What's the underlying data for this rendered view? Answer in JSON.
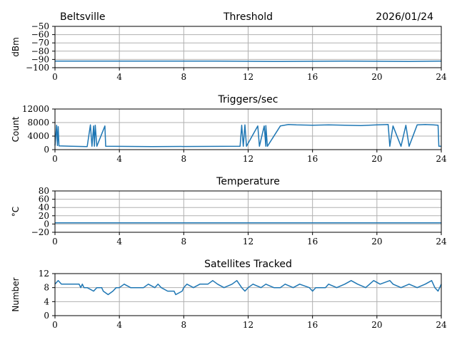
{
  "header": {
    "station": "Beltsville",
    "date": "2026/01/24"
  },
  "colors": {
    "series": "#1f77b4",
    "grid": "#b0b0b0"
  },
  "chart_data": [
    {
      "type": "line",
      "title": "Threshold",
      "xlabel": "",
      "ylabel": "dBm",
      "xlim": [
        0,
        24
      ],
      "ylim": [
        -100,
        -50
      ],
      "x_ticks": [
        0,
        4,
        8,
        12,
        16,
        20,
        24
      ],
      "y_ticks": [
        -100,
        -90,
        -80,
        -70,
        -60,
        -50
      ],
      "series": [
        {
          "name": "Threshold",
          "points": [
            [
              0,
              -92
            ],
            [
              3,
              -92
            ],
            [
              6,
              -92
            ],
            [
              10,
              -92
            ],
            [
              14,
              -92.5
            ],
            [
              18,
              -92
            ],
            [
              22,
              -92.5
            ],
            [
              24,
              -92
            ]
          ]
        }
      ]
    },
    {
      "type": "line",
      "title": "Triggers/sec",
      "xlabel": "",
      "ylabel": "Count",
      "xlim": [
        0,
        24
      ],
      "ylim": [
        0,
        12000
      ],
      "x_ticks": [
        0,
        4,
        8,
        12,
        16,
        20,
        24
      ],
      "y_ticks": [
        0,
        4000,
        8000,
        12000
      ],
      "series": [
        {
          "name": "Triggers",
          "points": [
            [
              0,
              1200
            ],
            [
              0.1,
              7200
            ],
            [
              0.15,
              1200
            ],
            [
              0.2,
              6800
            ],
            [
              0.25,
              1100
            ],
            [
              1,
              1000
            ],
            [
              2,
              900
            ],
            [
              2.2,
              7300
            ],
            [
              2.3,
              1000
            ],
            [
              2.4,
              7000
            ],
            [
              2.45,
              1000
            ],
            [
              2.5,
              7200
            ],
            [
              2.6,
              1000
            ],
            [
              3.1,
              7000
            ],
            [
              3.15,
              1000
            ],
            [
              6,
              900
            ],
            [
              11.5,
              1000
            ],
            [
              11.6,
              7200
            ],
            [
              11.7,
              1000
            ],
            [
              11.8,
              7300
            ],
            [
              11.9,
              1000
            ],
            [
              12.6,
              7000
            ],
            [
              12.7,
              1000
            ],
            [
              13,
              7000
            ],
            [
              13.1,
              1000
            ],
            [
              13.1,
              7100
            ],
            [
              13.2,
              1000
            ],
            [
              14,
              7000
            ],
            [
              14.5,
              7400
            ],
            [
              15,
              7300
            ],
            [
              16,
              7200
            ],
            [
              17,
              7300
            ],
            [
              18,
              7200
            ],
            [
              19,
              7100
            ],
            [
              20,
              7300
            ],
            [
              20.7,
              7400
            ],
            [
              20.8,
              1000
            ],
            [
              21,
              7000
            ],
            [
              21.5,
              1000
            ],
            [
              21.8,
              7200
            ],
            [
              22,
              1000
            ],
            [
              22.5,
              7300
            ],
            [
              23,
              7400
            ],
            [
              23.5,
              7300
            ],
            [
              23.8,
              7200
            ],
            [
              23.85,
              1000
            ],
            [
              24,
              1000
            ]
          ]
        }
      ]
    },
    {
      "type": "line",
      "title": "Temperature",
      "xlabel": "",
      "ylabel": "°C",
      "xlim": [
        0,
        24
      ],
      "ylim": [
        -20,
        80
      ],
      "x_ticks": [
        0,
        4,
        8,
        12,
        16,
        20,
        24
      ],
      "y_ticks": [
        -20,
        0,
        20,
        40,
        60,
        80
      ],
      "series": [
        {
          "name": "Temperature",
          "points": [
            [
              0,
              3
            ],
            [
              24,
              3
            ]
          ]
        }
      ]
    },
    {
      "type": "line",
      "title": "Satellites Tracked",
      "xlabel": "",
      "ylabel": "Number",
      "xlim": [
        0,
        24
      ],
      "ylim": [
        0,
        12
      ],
      "x_ticks": [
        0,
        4,
        8,
        12,
        16,
        20,
        24
      ],
      "y_ticks": [
        0,
        4,
        8,
        12
      ],
      "series": [
        {
          "name": "Satellites",
          "points": [
            [
              0,
              9
            ],
            [
              0.2,
              10
            ],
            [
              0.4,
              9
            ],
            [
              1.5,
              9
            ],
            [
              1.6,
              8
            ],
            [
              1.7,
              9
            ],
            [
              1.8,
              8
            ],
            [
              2,
              8
            ],
            [
              2.4,
              7
            ],
            [
              2.6,
              8
            ],
            [
              2.9,
              8
            ],
            [
              3,
              7
            ],
            [
              3.3,
              6
            ],
            [
              3.6,
              7
            ],
            [
              3.8,
              8
            ],
            [
              4,
              8
            ],
            [
              4.3,
              9
            ],
            [
              4.7,
              8
            ],
            [
              5.5,
              8
            ],
            [
              5.8,
              9
            ],
            [
              6.2,
              8
            ],
            [
              6.4,
              9
            ],
            [
              6.6,
              8
            ],
            [
              7,
              7
            ],
            [
              7.4,
              7
            ],
            [
              7.5,
              6
            ],
            [
              7.9,
              7
            ],
            [
              8,
              8
            ],
            [
              8.2,
              9
            ],
            [
              8.6,
              8
            ],
            [
              9,
              9
            ],
            [
              9.5,
              9
            ],
            [
              9.8,
              10
            ],
            [
              10.1,
              9
            ],
            [
              10.5,
              8
            ],
            [
              11,
              9
            ],
            [
              11.3,
              10
            ],
            [
              11.6,
              8
            ],
            [
              11.8,
              7
            ],
            [
              12,
              8
            ],
            [
              12.3,
              9
            ],
            [
              12.8,
              8
            ],
            [
              13.1,
              9
            ],
            [
              13.6,
              8
            ],
            [
              14,
              8
            ],
            [
              14.3,
              9
            ],
            [
              14.8,
              8
            ],
            [
              15.2,
              9
            ],
            [
              15.8,
              8
            ],
            [
              16,
              7
            ],
            [
              16.2,
              8
            ],
            [
              16.8,
              8
            ],
            [
              17,
              9
            ],
            [
              17.5,
              8
            ],
            [
              18,
              9
            ],
            [
              18.4,
              10
            ],
            [
              18.8,
              9
            ],
            [
              19.3,
              8
            ],
            [
              19.8,
              10
            ],
            [
              20.2,
              9
            ],
            [
              20.8,
              10
            ],
            [
              21,
              9
            ],
            [
              21.5,
              8
            ],
            [
              22,
              9
            ],
            [
              22.5,
              8
            ],
            [
              23,
              9
            ],
            [
              23.4,
              10
            ],
            [
              23.6,
              8
            ],
            [
              23.8,
              7
            ],
            [
              24,
              9
            ]
          ]
        }
      ]
    }
  ]
}
